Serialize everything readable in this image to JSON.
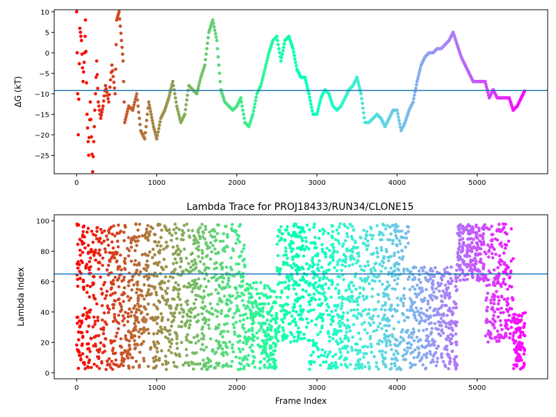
{
  "chart_data": [
    {
      "type": "scatter",
      "title": "",
      "xlabel": "",
      "ylabel": "ΔG (kT)",
      "xlim": [
        -280,
        5880
      ],
      "ylim": [
        -29.5,
        10.5
      ],
      "xticks": [
        0,
        1000,
        2000,
        3000,
        4000,
        5000
      ],
      "yticks": [
        -25,
        -20,
        -15,
        -10,
        -5,
        0,
        5,
        10
      ],
      "grid": false,
      "colormap": "rainbow",
      "reference_line": {
        "y": -9.2,
        "color": "#1f77b4"
      },
      "trace": [
        [
          0,
          10
        ],
        [
          20,
          -20
        ],
        [
          40,
          6
        ],
        [
          60,
          3
        ],
        [
          80,
          -7
        ],
        [
          100,
          0
        ],
        [
          110,
          8
        ],
        [
          130,
          -15
        ],
        [
          150,
          -25
        ],
        [
          170,
          -12
        ],
        [
          200,
          -29
        ],
        [
          220,
          -18
        ],
        [
          250,
          -2
        ],
        [
          270,
          -12
        ],
        [
          300,
          -16
        ],
        [
          330,
          -13
        ],
        [
          360,
          -8
        ],
        [
          400,
          -12
        ],
        [
          440,
          -3
        ],
        [
          480,
          -10
        ],
        [
          500,
          8
        ],
        [
          530,
          10
        ],
        [
          560,
          3
        ],
        [
          580,
          -2
        ],
        [
          600,
          -17
        ],
        [
          650,
          -13
        ],
        [
          700,
          -14
        ],
        [
          750,
          -10
        ],
        [
          800,
          -19
        ],
        [
          850,
          -21
        ],
        [
          900,
          -12
        ],
        [
          960,
          -18
        ],
        [
          1000,
          -21
        ],
        [
          1050,
          -16
        ],
        [
          1100,
          -14
        ],
        [
          1150,
          -11
        ],
        [
          1200,
          -7
        ],
        [
          1250,
          -13
        ],
        [
          1300,
          -17
        ],
        [
          1350,
          -15
        ],
        [
          1400,
          -8
        ],
        [
          1450,
          -9
        ],
        [
          1500,
          -10
        ],
        [
          1550,
          -6
        ],
        [
          1600,
          -3
        ],
        [
          1650,
          5
        ],
        [
          1700,
          8
        ],
        [
          1750,
          3
        ],
        [
          1800,
          -9
        ],
        [
          1850,
          -12
        ],
        [
          1900,
          -13
        ],
        [
          1950,
          -14
        ],
        [
          2000,
          -13
        ],
        [
          2050,
          -11
        ],
        [
          2100,
          -17
        ],
        [
          2150,
          -18
        ],
        [
          2200,
          -15
        ],
        [
          2250,
          -10
        ],
        [
          2300,
          -8
        ],
        [
          2350,
          -4
        ],
        [
          2400,
          0
        ],
        [
          2450,
          3
        ],
        [
          2500,
          4
        ],
        [
          2550,
          -2
        ],
        [
          2600,
          3
        ],
        [
          2650,
          4
        ],
        [
          2700,
          1
        ],
        [
          2750,
          -4
        ],
        [
          2800,
          -6
        ],
        [
          2850,
          -6
        ],
        [
          2900,
          -10
        ],
        [
          2950,
          -15
        ],
        [
          3000,
          -15
        ],
        [
          3050,
          -11
        ],
        [
          3100,
          -9
        ],
        [
          3150,
          -10
        ],
        [
          3200,
          -13
        ],
        [
          3250,
          -14
        ],
        [
          3300,
          -13
        ],
        [
          3350,
          -11
        ],
        [
          3400,
          -9
        ],
        [
          3450,
          -8
        ],
        [
          3500,
          -6
        ],
        [
          3550,
          -10
        ],
        [
          3600,
          -17
        ],
        [
          3650,
          -17
        ],
        [
          3700,
          -16
        ],
        [
          3750,
          -15
        ],
        [
          3800,
          -16
        ],
        [
          3850,
          -18
        ],
        [
          3900,
          -16
        ],
        [
          3950,
          -14
        ],
        [
          4000,
          -14
        ],
        [
          4050,
          -19
        ],
        [
          4100,
          -17
        ],
        [
          4150,
          -14
        ],
        [
          4200,
          -12
        ],
        [
          4250,
          -7
        ],
        [
          4300,
          -3
        ],
        [
          4350,
          -1
        ],
        [
          4400,
          0
        ],
        [
          4450,
          0
        ],
        [
          4500,
          1
        ],
        [
          4550,
          1
        ],
        [
          4600,
          2
        ],
        [
          4650,
          3
        ],
        [
          4700,
          5
        ],
        [
          4750,
          2
        ],
        [
          4800,
          -1
        ],
        [
          4850,
          -3
        ],
        [
          4900,
          -5
        ],
        [
          4950,
          -7
        ],
        [
          5000,
          -7
        ],
        [
          5050,
          -7
        ],
        [
          5100,
          -7
        ],
        [
          5150,
          -11
        ],
        [
          5200,
          -9
        ],
        [
          5250,
          -11
        ],
        [
          5300,
          -11
        ],
        [
          5350,
          -11
        ],
        [
          5400,
          -11
        ],
        [
          5450,
          -14
        ],
        [
          5500,
          -13
        ],
        [
          5550,
          -11
        ],
        [
          5600,
          -9
        ]
      ]
    },
    {
      "type": "scatter",
      "title": "Lambda Trace for PROJ18433/RUN34/CLONE15",
      "xlabel": "Frame Index",
      "ylabel": "Lambda Index",
      "xlim": [
        -280,
        5880
      ],
      "ylim": [
        -4,
        104
      ],
      "xticks": [
        0,
        1000,
        2000,
        3000,
        4000,
        5000
      ],
      "yticks": [
        0,
        20,
        40,
        60,
        80,
        100
      ],
      "grid": false,
      "colormap": "rainbow",
      "reference_line": {
        "y": 65,
        "color": "#1f77b4"
      },
      "frames": 5600,
      "sampling_blocks": [
        [
          0,
          200,
          2,
          98
        ],
        [
          200,
          700,
          2,
          98
        ],
        [
          700,
          1200,
          2,
          98
        ],
        [
          1200,
          1700,
          2,
          98
        ],
        [
          1700,
          2100,
          2,
          98
        ],
        [
          2100,
          2500,
          2,
          60
        ],
        [
          2500,
          2900,
          20,
          98
        ],
        [
          2900,
          3300,
          2,
          98
        ],
        [
          3300,
          3700,
          2,
          98
        ],
        [
          3700,
          4150,
          2,
          98
        ],
        [
          4150,
          4750,
          2,
          70
        ],
        [
          4750,
          5100,
          60,
          98
        ],
        [
          5100,
          5450,
          20,
          98
        ],
        [
          5450,
          5600,
          2,
          40
        ]
      ]
    }
  ]
}
